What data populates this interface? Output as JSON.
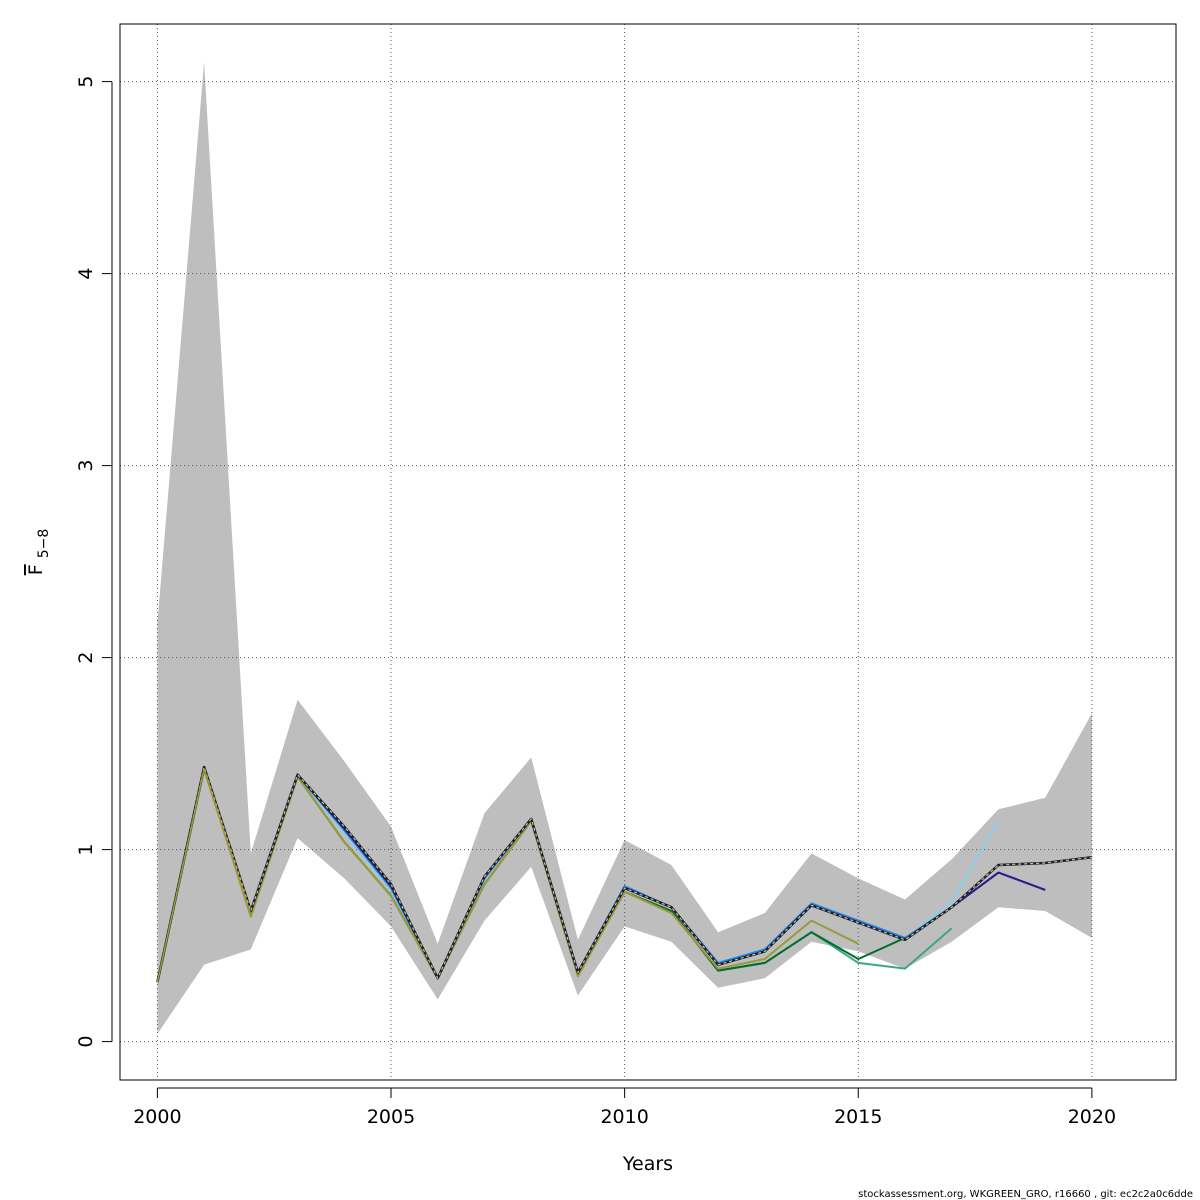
{
  "chart_data": {
    "type": "line",
    "xlabel": "Years",
    "ylabel_main": "F",
    "ylabel_sub": "5−8",
    "xlim": [
      1999.2,
      2021.8
    ],
    "ylim": [
      -0.2,
      5.3
    ],
    "xticks": [
      2000,
      2005,
      2010,
      2015,
      2020
    ],
    "yticks": [
      0,
      1,
      2,
      3,
      4,
      5
    ],
    "grid": true,
    "band": {
      "color": "#bebebe",
      "x": [
        2000,
        2001,
        2002,
        2003,
        2004,
        2005,
        2006,
        2007,
        2008,
        2009,
        2010,
        2011,
        2012,
        2013,
        2014,
        2015,
        2016,
        2017,
        2018,
        2019,
        2020
      ],
      "upper": [
        2.18,
        5.1,
        0.98,
        1.78,
        1.46,
        1.12,
        0.51,
        1.19,
        1.48,
        0.53,
        1.05,
        0.92,
        0.57,
        0.67,
        0.98,
        0.85,
        0.74,
        0.95,
        1.21,
        1.27,
        1.71
      ],
      "lower": [
        0.04,
        0.4,
        0.48,
        1.06,
        0.85,
        0.6,
        0.22,
        0.63,
        0.91,
        0.24,
        0.6,
        0.52,
        0.28,
        0.33,
        0.52,
        0.47,
        0.38,
        0.52,
        0.7,
        0.68,
        0.54
      ]
    },
    "series": [
      {
        "color": "#87ceeb",
        "width": 2,
        "dash": "",
        "x": [
          2000,
          2001,
          2002,
          2003,
          2004,
          2005,
          2006,
          2007,
          2008,
          2009,
          2010,
          2011,
          2012,
          2013,
          2014,
          2015,
          2016,
          2017,
          2018
        ],
        "y": [
          0.31,
          1.42,
          0.68,
          1.39,
          1.09,
          0.79,
          0.33,
          0.85,
          1.16,
          0.36,
          0.8,
          0.7,
          0.4,
          0.47,
          0.72,
          0.62,
          0.53,
          0.73,
          1.15
        ]
      },
      {
        "color": "#1c86ee",
        "width": 2,
        "dash": "",
        "x": [
          2000,
          2001,
          2002,
          2003,
          2004,
          2005,
          2006,
          2007,
          2008,
          2009,
          2010,
          2011,
          2012,
          2013,
          2014,
          2015,
          2016,
          2017,
          2018,
          2019
        ],
        "y": [
          0.31,
          1.42,
          0.68,
          1.39,
          1.1,
          0.8,
          0.33,
          0.85,
          1.16,
          0.36,
          0.81,
          0.7,
          0.41,
          0.48,
          0.72,
          0.63,
          0.54,
          0.7,
          0.88,
          0.79
        ]
      },
      {
        "color": "#2e1a87",
        "width": 2,
        "dash": "",
        "x": [
          2000,
          2001,
          2002,
          2003,
          2004,
          2005,
          2006,
          2007,
          2008,
          2009,
          2010,
          2011,
          2012,
          2013,
          2014,
          2015,
          2016,
          2017,
          2018,
          2019
        ],
        "y": [
          0.31,
          1.42,
          0.68,
          1.39,
          1.11,
          0.81,
          0.33,
          0.86,
          1.16,
          0.36,
          0.8,
          0.7,
          0.4,
          0.47,
          0.71,
          0.62,
          0.53,
          0.7,
          0.88,
          0.79
        ]
      },
      {
        "color": "#3aa68c",
        "width": 2,
        "dash": "",
        "x": [
          2000,
          2001,
          2002,
          2003,
          2004,
          2005,
          2006,
          2007,
          2008,
          2009,
          2010,
          2011,
          2012,
          2013,
          2014,
          2015,
          2016,
          2017
        ],
        "y": [
          0.31,
          1.42,
          0.67,
          1.38,
          1.04,
          0.76,
          0.33,
          0.82,
          1.15,
          0.35,
          0.78,
          0.68,
          0.37,
          0.41,
          0.57,
          0.41,
          0.38,
          0.59
        ]
      },
      {
        "color": "#006d2c",
        "width": 2,
        "dash": "",
        "x": [
          2000,
          2001,
          2002,
          2003,
          2004,
          2005,
          2006,
          2007,
          2008,
          2009,
          2010,
          2011,
          2012,
          2013,
          2014,
          2015,
          2016
        ],
        "y": [
          0.31,
          1.42,
          0.67,
          1.38,
          1.04,
          0.76,
          0.33,
          0.82,
          1.15,
          0.35,
          0.78,
          0.68,
          0.37,
          0.41,
          0.57,
          0.43,
          0.54
        ]
      },
      {
        "color": "#9a9a3a",
        "width": 2,
        "dash": "",
        "x": [
          2000,
          2001,
          2002,
          2003,
          2004,
          2005,
          2006,
          2007,
          2008,
          2009,
          2010,
          2011,
          2012,
          2013,
          2014,
          2015
        ],
        "y": [
          0.31,
          1.42,
          0.65,
          1.38,
          1.04,
          0.76,
          0.33,
          0.82,
          1.15,
          0.34,
          0.78,
          0.67,
          0.38,
          0.43,
          0.63,
          0.51
        ]
      },
      {
        "color": "#1f1f1f",
        "width": 2.5,
        "dash": "",
        "x": [
          2000,
          2001,
          2002,
          2003,
          2004,
          2005,
          2006,
          2007,
          2008,
          2009,
          2010,
          2011,
          2012,
          2013,
          2014,
          2015,
          2016,
          2017,
          2018,
          2019,
          2020
        ],
        "y": [
          0.31,
          1.43,
          0.68,
          1.39,
          1.12,
          0.82,
          0.33,
          0.86,
          1.16,
          0.36,
          0.8,
          0.7,
          0.4,
          0.47,
          0.71,
          0.62,
          0.53,
          0.7,
          0.92,
          0.93,
          0.96
        ]
      },
      {
        "color": "#bebebe",
        "width": 1.2,
        "dash": "3,3",
        "x": [
          2000,
          2001,
          2002,
          2003,
          2004,
          2005,
          2006,
          2007,
          2008,
          2009,
          2010,
          2011,
          2012,
          2013,
          2014,
          2015,
          2016,
          2017,
          2018,
          2019,
          2020
        ],
        "y": [
          0.31,
          1.43,
          0.68,
          1.39,
          1.12,
          0.82,
          0.33,
          0.86,
          1.16,
          0.36,
          0.8,
          0.7,
          0.4,
          0.47,
          0.71,
          0.62,
          0.53,
          0.7,
          0.92,
          0.93,
          0.96
        ]
      },
      {
        "color": "#9a9a3a",
        "width": 1.5,
        "dash": "",
        "x": [
          2000,
          2001,
          2002
        ],
        "y": [
          0.31,
          1.42,
          0.66
        ]
      }
    ]
  },
  "footer": "stockassessment.org, WKGREEN_GRO, r16660 , git: ec2c2a0c6dde"
}
